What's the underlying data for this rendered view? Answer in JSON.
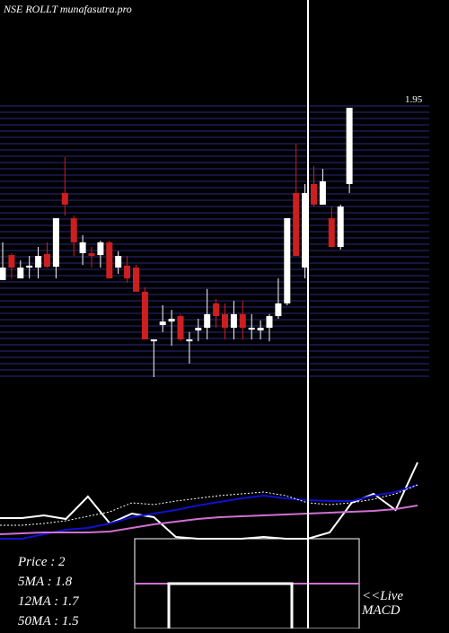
{
  "chart_data": [
    {
      "type": "candlestick",
      "title": "NSE ROLLT munafasutra.pro",
      "ylim": [
        0.95,
        1.95
      ],
      "yticks": [
        1.95
      ],
      "up_color": "#ffffff",
      "down_color": "#cc1f1f",
      "grid_color": "#2a2a80",
      "series": [
        {
          "values": [
            [
              1.308,
              1.447,
              1.308,
              1.354
            ],
            [
              1.4,
              1.407,
              1.314,
              1.354
            ],
            [
              1.314,
              1.38,
              1.314,
              1.354
            ],
            [
              1.354,
              1.397,
              1.314,
              1.361
            ],
            [
              1.354,
              1.43,
              1.314,
              1.397
            ],
            [
              1.404,
              1.447,
              1.354,
              1.357
            ],
            [
              1.357,
              1.536,
              1.314,
              1.536
            ],
            [
              1.629,
              1.761,
              1.546,
              1.586
            ],
            [
              1.536,
              1.546,
              1.397,
              1.447
            ],
            [
              1.407,
              1.473,
              1.364,
              1.447
            ],
            [
              1.407,
              1.43,
              1.354,
              1.397
            ],
            [
              1.4,
              1.453,
              1.354,
              1.447
            ],
            [
              1.447,
              1.453,
              1.314,
              1.314
            ],
            [
              1.354,
              1.414,
              1.331,
              1.397
            ],
            [
              1.361,
              1.397,
              1.298,
              1.314
            ],
            [
              1.354,
              1.364,
              1.265,
              1.265
            ],
            [
              1.265,
              1.281,
              1.089,
              1.089
            ],
            [
              1.082,
              1.089,
              0.95,
              1.089
            ],
            [
              1.142,
              1.215,
              1.116,
              1.155
            ],
            [
              1.155,
              1.198,
              1.066,
              1.165
            ],
            [
              1.175,
              1.182,
              1.082,
              1.089
            ],
            [
              1.082,
              1.116,
              1.0,
              1.089
            ],
            [
              1.122,
              1.165,
              1.082,
              1.132
            ],
            [
              1.132,
              1.275,
              1.089,
              1.182
            ],
            [
              1.222,
              1.238,
              1.132,
              1.175
            ],
            [
              1.182,
              1.222,
              1.089,
              1.132
            ],
            [
              1.132,
              1.231,
              1.089,
              1.182
            ],
            [
              1.182,
              1.231,
              1.089,
              1.132
            ],
            [
              1.125,
              1.182,
              1.089,
              1.132
            ],
            [
              1.122,
              1.159,
              1.089,
              1.132
            ],
            [
              1.132,
              1.182,
              1.082,
              1.175
            ],
            [
              1.175,
              1.314,
              1.165,
              1.222
            ],
            [
              1.222,
              1.536,
              1.215,
              1.536
            ],
            [
              1.629,
              1.811,
              1.397,
              1.397
            ],
            [
              1.354,
              1.662,
              1.314,
              1.629
            ],
            [
              1.662,
              1.728,
              1.579,
              1.586
            ],
            [
              1.586,
              1.718,
              1.586,
              1.672
            ],
            [
              1.536,
              1.579,
              1.43,
              1.43
            ],
            [
              1.43,
              1.586,
              1.42,
              1.579
            ],
            [
              1.662,
              1.943,
              1.629,
              1.943
            ]
          ]
        }
      ]
    },
    {
      "type": "line",
      "ylim": [
        0,
        110
      ],
      "stats": [
        "Price  : 2",
        "5MA : 1.8",
        "12MA : 1.7",
        "50MA : 1.5"
      ],
      "series": [
        {
          "color": "#ffffff",
          "values": [
            43,
            43,
            46,
            42,
            67,
            37,
            48,
            44,
            22,
            20,
            20,
            20,
            22,
            20,
            20,
            27,
            60,
            70,
            52,
            105
          ]
        },
        {
          "color": "#1010d0",
          "values": [
            20,
            20,
            25,
            30,
            32,
            37,
            44,
            48,
            52,
            57,
            61,
            65,
            68,
            65,
            63,
            62,
            62,
            68,
            72,
            80
          ]
        },
        {
          "color": "#d070d0",
          "values": [
            25,
            26,
            27,
            27,
            27,
            28,
            32,
            36,
            39,
            42,
            44,
            45,
            46,
            47,
            48,
            49,
            50,
            51,
            53,
            57
          ]
        },
        {
          "color": "#ffffff",
          "dashed": true,
          "values": [
            35,
            35,
            37,
            40,
            45,
            50,
            60,
            58,
            62,
            65,
            68,
            70,
            72,
            68,
            60,
            58,
            60,
            64,
            70,
            80
          ]
        }
      ]
    },
    {
      "type": "macd",
      "label": [
        "<<Live",
        "MACD"
      ]
    }
  ]
}
